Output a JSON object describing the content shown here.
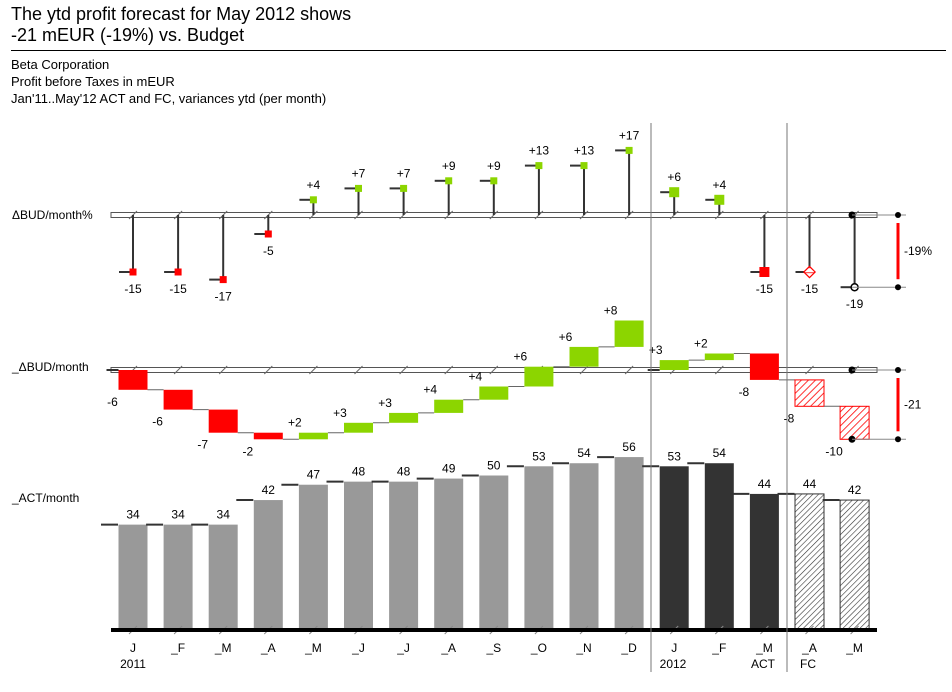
{
  "header": {
    "title_line1": "The ytd profit forecast for May 2012 shows",
    "title_line2": "-21 mEUR (-19%) vs. Budget",
    "company": "Beta Corporation",
    "measure": "Profit before Taxes in mEUR",
    "period": "Jan'11..May'12 ACT and FC, variances ytd (per month)"
  },
  "colors": {
    "act_2011": "#999999",
    "act_2012": "#333333",
    "positive": "#8CD500",
    "negative": "#FF0000",
    "axis": "#000000"
  },
  "chart_data": {
    "type": "bar",
    "categories": [
      "J",
      "_F",
      "_M",
      "_A",
      "_M",
      "_J",
      "_J",
      "_A",
      "_S",
      "_O",
      "_N",
      "_D",
      "J",
      "_F",
      "_M",
      "_A",
      "_M"
    ],
    "year_labels": [
      "2011",
      "2012"
    ],
    "scenario_labels": [
      "ACT",
      "FC"
    ],
    "scenario": [
      "ACT",
      "ACT",
      "ACT",
      "ACT",
      "ACT",
      "ACT",
      "ACT",
      "ACT",
      "ACT",
      "ACT",
      "ACT",
      "ACT",
      "ACT",
      "ACT",
      "ACT",
      "FC",
      "FC"
    ],
    "panels": [
      {
        "name": "ΔBUD/month%",
        "type": "pin",
        "unit": "%",
        "values": [
          -15,
          -15,
          -17,
          -5,
          4,
          7,
          7,
          9,
          9,
          13,
          13,
          17,
          6,
          4,
          -15,
          -15,
          -19
        ],
        "labels": [
          "-15",
          "-15",
          "-17",
          "-5",
          "+4",
          "+7",
          "+7",
          "+9",
          "+9",
          "+13",
          "+13",
          "+17",
          "+6",
          "+4",
          "-15",
          "-15",
          "-19"
        ],
        "total_label": "-19%"
      },
      {
        "name": "_ΔBUD/month",
        "type": "waterfall",
        "values": [
          -6,
          -6,
          -7,
          -2,
          2,
          3,
          3,
          4,
          4,
          6,
          6,
          8,
          3,
          2,
          -8,
          -8,
          -10
        ],
        "labels": [
          "-6",
          "-6",
          "-7",
          "-2",
          "+2",
          "+3",
          "+3",
          "+4",
          "+4",
          "+6",
          "+6",
          "+8",
          "+3",
          "+2",
          "-8",
          "-8",
          "-10"
        ],
        "total_label": "-21"
      },
      {
        "name": "_ACT/month",
        "type": "bar",
        "values": [
          34,
          34,
          34,
          42,
          47,
          48,
          48,
          49,
          50,
          53,
          54,
          56,
          53,
          54,
          44,
          44,
          42
        ],
        "labels": [
          "34",
          "34",
          "34",
          "42",
          "47",
          "48",
          "48",
          "49",
          "50",
          "53",
          "54",
          "56",
          "53",
          "54",
          "44",
          "44",
          "42"
        ]
      }
    ]
  }
}
